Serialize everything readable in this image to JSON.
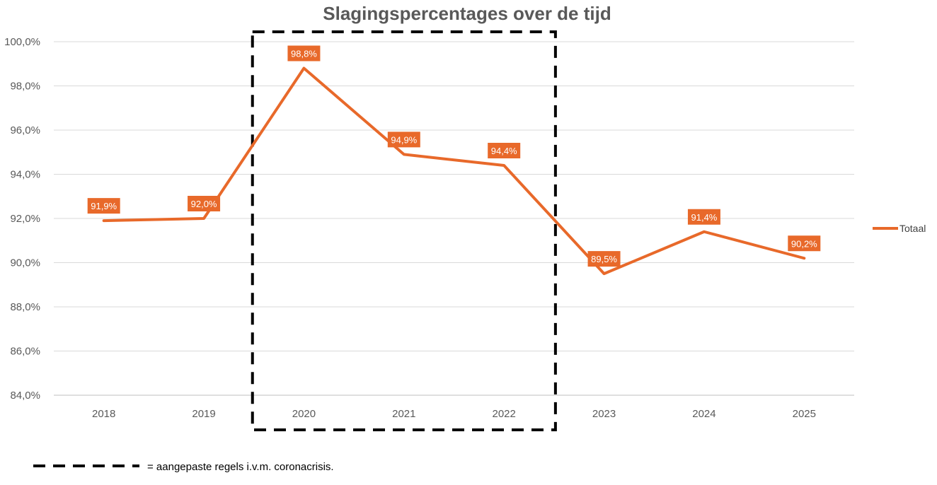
{
  "chart_data": {
    "type": "line",
    "title": "Slagingspercentages over de tijd",
    "categories": [
      "2018",
      "2019",
      "2020",
      "2021",
      "2022",
      "2023",
      "2024",
      "2025"
    ],
    "series": [
      {
        "name": "Totaal",
        "values": [
          91.9,
          92.0,
          98.8,
          94.9,
          94.4,
          89.5,
          91.4,
          90.2
        ],
        "labels": [
          "91,9%",
          "92,0%",
          "98,8%",
          "94,9%",
          "94,4%",
          "89,5%",
          "91,4%",
          "90,2%"
        ],
        "color": "#E8692A"
      }
    ],
    "ylim": [
      84,
      100
    ],
    "ytick_values": [
      84,
      86,
      88,
      90,
      92,
      94,
      96,
      98,
      100
    ],
    "ytick_labels": [
      "84,0%",
      "86,0%",
      "88,0%",
      "90,0%",
      "92,0%",
      "94,0%",
      "96,0%",
      "98,0%",
      "100,0%"
    ],
    "grid": true,
    "legend_position": "right",
    "highlight": {
      "categories": [
        "2020",
        "2021",
        "2022"
      ],
      "style": "dashed box"
    },
    "annotation": "= aangepaste regels i.v.m. coronacrisis."
  }
}
